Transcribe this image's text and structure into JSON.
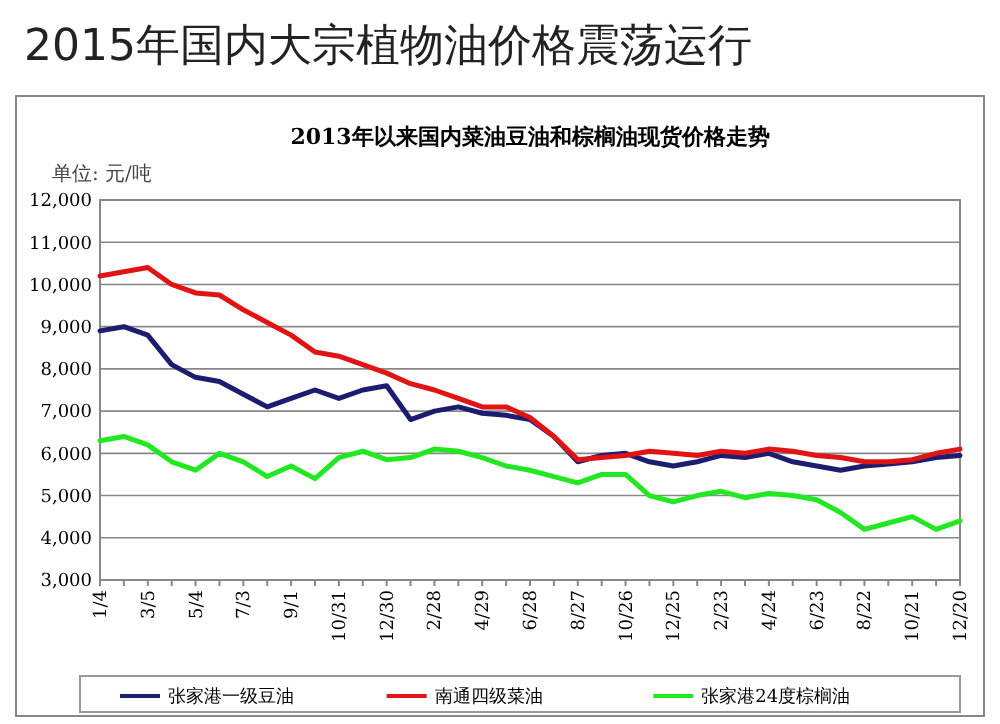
{
  "chart_data": {
    "type": "line",
    "title": "2015年国内大宗植物油价格震荡运行",
    "subtitle": "2013年以来国内菜油豆油和棕榈油现货价格走势",
    "ylabel": "单位: 元/吨",
    "categories": [
      "1/4",
      null,
      "3/5",
      null,
      "5/4",
      null,
      "7/3",
      null,
      "9/1",
      null,
      "10/31",
      null,
      "12/30",
      null,
      "2/28",
      null,
      "4/29",
      null,
      "6/28",
      null,
      "8/27",
      null,
      "10/26",
      null,
      "12/25",
      null,
      "2/23",
      null,
      "4/24",
      null,
      "6/23",
      null,
      "8/22",
      null,
      "10/21",
      null,
      "12/20"
    ],
    "series": [
      {
        "name": "张家港一级豆油",
        "color": "#1c1c70",
        "values": [
          8900,
          9000,
          8800,
          8100,
          7800,
          7700,
          7400,
          7100,
          7300,
          7500,
          7300,
          7500,
          7600,
          6800,
          7000,
          7100,
          6950,
          6900,
          6800,
          6400,
          5800,
          5950,
          6000,
          5800,
          5700,
          5800,
          5950,
          5900,
          6000,
          5800,
          5700,
          5600,
          5700,
          5750,
          5800,
          5900,
          5950
        ]
      },
      {
        "name": "南通四级菜油",
        "color": "#e01414",
        "values": [
          10200,
          10300,
          10400,
          10000,
          9800,
          9750,
          9400,
          9100,
          8800,
          8400,
          8300,
          8100,
          7900,
          7650,
          7500,
          7300,
          7100,
          7100,
          6850,
          6400,
          5850,
          5900,
          5950,
          6050,
          6000,
          5950,
          6050,
          6000,
          6100,
          6050,
          5950,
          5900,
          5800,
          5800,
          5850,
          6000,
          6100
        ]
      },
      {
        "name": "张家港24度棕榈油",
        "color": "#22e822",
        "values": [
          6300,
          6400,
          6200,
          5800,
          5600,
          6000,
          5800,
          5450,
          5700,
          5400,
          5900,
          6050,
          5850,
          5900,
          6100,
          6050,
          5900,
          5700,
          5600,
          5450,
          5300,
          5500,
          5500,
          5000,
          4850,
          5000,
          5100,
          4950,
          5050,
          5000,
          4900,
          4600,
          4200,
          4350,
          4500,
          4200,
          4400
        ]
      }
    ],
    "ylim": [
      3000,
      12000
    ],
    "yticks": [
      {
        "value": 3000,
        "label": "3,000"
      },
      {
        "value": 4000,
        "label": "4,000"
      },
      {
        "value": 5000,
        "label": "5,000"
      },
      {
        "value": 6000,
        "label": "6,000"
      },
      {
        "value": 7000,
        "label": "7,000"
      },
      {
        "value": 8000,
        "label": "8,000"
      },
      {
        "value": 9000,
        "label": "9,000"
      },
      {
        "value": 10000,
        "label": "10,000"
      },
      {
        "value": 11000,
        "label": "11,000"
      },
      {
        "value": 12000,
        "label": "12,000"
      }
    ],
    "grid": "y",
    "legend": "bottom",
    "marker": "none",
    "line_style": "solid"
  }
}
